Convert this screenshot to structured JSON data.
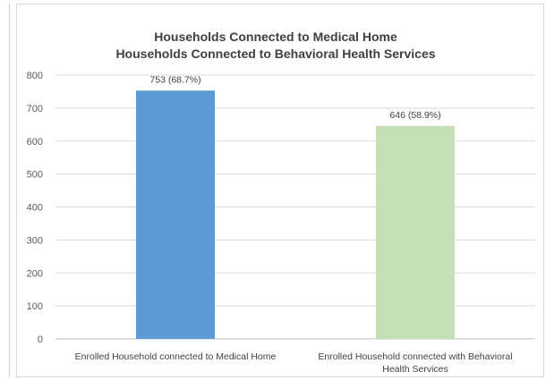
{
  "chart_data": {
    "type": "bar",
    "title": [
      "Households Connected to Medical Home",
      "Households Connected to Behavioral Health Services"
    ],
    "categories": [
      [
        "Enrolled Household connected to Medical Home"
      ],
      [
        "Enrolled Household connected with Behavioral",
        "Health Services"
      ]
    ],
    "values": [
      753,
      646
    ],
    "data_labels": [
      "753  (68.7%)",
      "646 (58.9%)"
    ],
    "bar_colors": [
      "#5b9bd5",
      "#c5e0b4"
    ],
    "ylim": [
      0,
      800
    ],
    "yticks": [
      0,
      100,
      200,
      300,
      400,
      500,
      600,
      700,
      800
    ],
    "grid": true,
    "legend": "none",
    "xlabel": "",
    "ylabel": ""
  }
}
